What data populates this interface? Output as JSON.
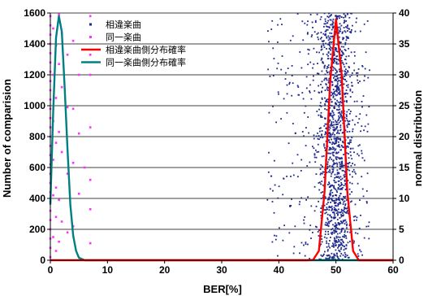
{
  "chart_data": {
    "type": "scatter",
    "xlabel": "BER[%]",
    "ylabel": "Number of comparision",
    "y2label": "normal distribution",
    "xlim": [
      0,
      60
    ],
    "ylim": [
      0,
      1600
    ],
    "y2lim": [
      0,
      40
    ],
    "x_ticks": [
      0,
      10,
      20,
      30,
      40,
      50,
      60
    ],
    "y_ticks": [
      0,
      200,
      400,
      600,
      800,
      1000,
      1200,
      1400,
      1600
    ],
    "y2_ticks": [
      0,
      5,
      10,
      15,
      20,
      25,
      30,
      35,
      40
    ],
    "grid": "horizontal",
    "legend_position": "top-left",
    "series": [
      {
        "name": "相違楽曲",
        "kind": "scatter",
        "color": "#1f2a8c",
        "x_range": [
          38,
          57
        ],
        "cluster_center": 50,
        "point_count": 1600
      },
      {
        "name": "同一楽曲",
        "kind": "scatter",
        "color": "#ff33ff",
        "points": [
          [
            0,
            1580
          ],
          [
            0,
            1520
          ],
          [
            0,
            1460
          ],
          [
            0,
            1400
          ],
          [
            0,
            1340
          ],
          [
            0,
            1280
          ],
          [
            0,
            1220
          ],
          [
            0,
            1160
          ],
          [
            0,
            1100
          ],
          [
            0,
            1040
          ],
          [
            0,
            980
          ],
          [
            0,
            920
          ],
          [
            0,
            860
          ],
          [
            0,
            800
          ],
          [
            0,
            740
          ],
          [
            0,
            680
          ],
          [
            0,
            620
          ],
          [
            0,
            560
          ],
          [
            0,
            500
          ],
          [
            0,
            440
          ],
          [
            0,
            380
          ],
          [
            0,
            320
          ],
          [
            0,
            260
          ],
          [
            0,
            200
          ],
          [
            0,
            140
          ],
          [
            0,
            80
          ],
          [
            0,
            20
          ],
          [
            0.5,
            1500
          ],
          [
            0.5,
            1200
          ],
          [
            0.5,
            900
          ],
          [
            0.5,
            650
          ],
          [
            0.5,
            420
          ],
          [
            0.5,
            150
          ],
          [
            1,
            1390
          ],
          [
            1,
            1050
          ],
          [
            1,
            760
          ],
          [
            1,
            470
          ],
          [
            1,
            280
          ],
          [
            1,
            60
          ],
          [
            1.5,
            1590
          ],
          [
            1.5,
            1270
          ],
          [
            1.5,
            830
          ],
          [
            1.5,
            390
          ],
          [
            1.5,
            120
          ],
          [
            2,
            1470
          ],
          [
            2,
            1120
          ],
          [
            2,
            700
          ],
          [
            2,
            250
          ],
          [
            3,
            1330
          ],
          [
            3,
            990
          ],
          [
            3,
            560
          ],
          [
            3,
            180
          ],
          [
            4,
            1420
          ],
          [
            4,
            980
          ],
          [
            4,
            630
          ],
          [
            4,
            220
          ],
          [
            5,
            1200
          ],
          [
            5,
            820
          ],
          [
            5,
            430
          ],
          [
            6,
            600
          ],
          [
            7,
            1580
          ],
          [
            7,
            1330
          ],
          [
            7,
            1200
          ],
          [
            7,
            860
          ],
          [
            7,
            520
          ],
          [
            7,
            330
          ],
          [
            7,
            110
          ]
        ]
      },
      {
        "name": "相違楽曲側分布確率",
        "kind": "line",
        "axis": "y2",
        "color": "#ff0000",
        "x": [
          0,
          45,
          46,
          47,
          48,
          49,
          50,
          51,
          52,
          53,
          54,
          60
        ],
        "y": [
          0,
          0,
          0.05,
          1.5,
          11,
          29,
          39,
          30,
          11,
          1.5,
          0,
          0
        ]
      },
      {
        "name": "同一楽曲側分布確率",
        "kind": "line",
        "axis": "y2",
        "color": "#008080",
        "x": [
          0,
          0.5,
          1,
          1.5,
          2,
          2.5,
          3,
          3.5,
          4,
          4.5,
          5,
          6,
          60
        ],
        "y": [
          9,
          24,
          36,
          39.5,
          37,
          28,
          18,
          9,
          4,
          1.5,
          0.4,
          0,
          0
        ]
      }
    ]
  }
}
